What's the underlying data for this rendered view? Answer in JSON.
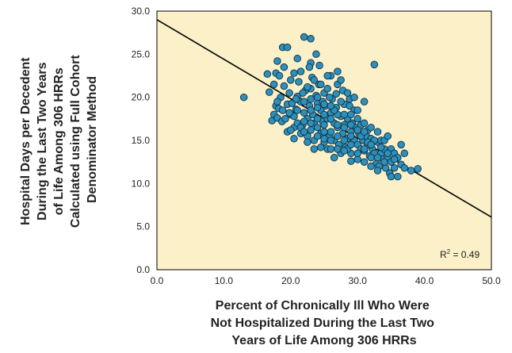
{
  "chart_data": {
    "type": "scatter",
    "title": "",
    "xlabel_lines": [
      "Percent of Chronically Ill Who Were",
      "Not Hospitalized During the Last Two",
      "Years of Life Among 306 HRRs"
    ],
    "ylabel_lines": [
      "Hospital Days per Decedent",
      "During the Last Two Years",
      "of Life Among 306 HRRs",
      "Calculated using Full Cohort",
      "Denominator Method"
    ],
    "xlim": [
      0,
      50
    ],
    "ylim": [
      0,
      30
    ],
    "x_ticks": [
      "0.0",
      "10.0",
      "20.0",
      "30.0",
      "40.0",
      "50.0"
    ],
    "y_ticks": [
      "0.0",
      "5.0",
      "10.0",
      "15.0",
      "20.0",
      "25.0",
      "30.0"
    ],
    "grid": false,
    "background_color": "#fbf0c8",
    "marker_color": "#2e8fb9",
    "marker_edge_color": "#0d2f45",
    "annotation": {
      "text": "R",
      "superscript": "2",
      "suffix": " = 0.49"
    },
    "trendline": {
      "x": [
        0,
        50
      ],
      "y": [
        29,
        6.1
      ],
      "color": "#000000"
    },
    "points": [
      [
        13.0,
        20.0
      ],
      [
        17.5,
        21.5
      ],
      [
        17.8,
        22.8
      ],
      [
        18.0,
        24.2
      ],
      [
        18.3,
        22.5
      ],
      [
        18.8,
        25.8
      ],
      [
        19.5,
        25.8
      ],
      [
        16.5,
        22.7
      ],
      [
        16.8,
        20.6
      ],
      [
        17.2,
        17.3
      ],
      [
        17.5,
        18.0
      ],
      [
        17.8,
        19.0
      ],
      [
        18.0,
        17.6
      ],
      [
        18.2,
        18.7
      ],
      [
        18.5,
        20.0
      ],
      [
        18.7,
        17.2
      ],
      [
        19.0,
        21.3
      ],
      [
        19.2,
        17.5
      ],
      [
        19.5,
        19.2
      ],
      [
        19.8,
        20.5
      ],
      [
        20.0,
        22.0
      ],
      [
        20.0,
        18.0
      ],
      [
        20.2,
        19.3
      ],
      [
        20.5,
        16.5
      ],
      [
        20.5,
        17.8
      ],
      [
        20.8,
        18.6
      ],
      [
        21.0,
        20.1
      ],
      [
        21.0,
        17.0
      ],
      [
        21.2,
        21.8
      ],
      [
        21.5,
        19.5
      ],
      [
        21.5,
        15.8
      ],
      [
        21.8,
        16.8
      ],
      [
        22.0,
        27.0
      ],
      [
        22.0,
        18.2
      ],
      [
        22.2,
        20.8
      ],
      [
        22.5,
        17.5
      ],
      [
        22.5,
        15.5
      ],
      [
        22.8,
        19.0
      ],
      [
        23.0,
        26.8
      ],
      [
        23.0,
        24.0
      ],
      [
        23.0,
        21.0
      ],
      [
        23.0,
        16.2
      ],
      [
        23.2,
        22.3
      ],
      [
        23.3,
        18.0
      ],
      [
        23.5,
        17.0
      ],
      [
        23.5,
        15.0
      ],
      [
        23.8,
        20.2
      ],
      [
        24.0,
        19.3
      ],
      [
        24.0,
        16.5
      ],
      [
        24.2,
        21.5
      ],
      [
        24.3,
        23.7
      ],
      [
        24.5,
        18.5
      ],
      [
        24.5,
        15.8
      ],
      [
        24.8,
        17.2
      ],
      [
        25.0,
        20.5
      ],
      [
        25.0,
        16.8
      ],
      [
        25.0,
        14.8
      ],
      [
        25.2,
        19.0
      ],
      [
        25.5,
        21.0
      ],
      [
        25.5,
        17.5
      ],
      [
        25.8,
        15.5
      ],
      [
        26.0,
        18.2
      ],
      [
        26.0,
        16.0
      ],
      [
        26.2,
        19.8
      ],
      [
        26.5,
        17.0
      ],
      [
        26.5,
        15.0
      ],
      [
        26.8,
        18.8
      ],
      [
        27.0,
        21.5
      ],
      [
        27.0,
        16.5
      ],
      [
        27.2,
        14.5
      ],
      [
        27.5,
        22.0
      ],
      [
        27.5,
        17.8
      ],
      [
        27.8,
        15.8
      ],
      [
        28.0,
        19.2
      ],
      [
        28.0,
        16.8
      ],
      [
        28.2,
        14.2
      ],
      [
        28.5,
        17.5
      ],
      [
        28.5,
        15.2
      ],
      [
        28.8,
        19.0
      ],
      [
        29.0,
        16.0
      ],
      [
        29.0,
        13.5
      ],
      [
        29.2,
        17.0
      ],
      [
        29.5,
        18.5
      ],
      [
        29.5,
        15.0
      ],
      [
        29.8,
        16.5
      ],
      [
        30.0,
        14.5
      ],
      [
        30.2,
        15.8
      ],
      [
        30.5,
        14.0
      ],
      [
        30.5,
        16.8
      ],
      [
        30.8,
        15.0
      ],
      [
        31.0,
        19.5
      ],
      [
        31.0,
        13.8
      ],
      [
        31.3,
        15.5
      ],
      [
        31.5,
        14.5
      ],
      [
        31.8,
        13.2
      ],
      [
        32.0,
        15.2
      ],
      [
        32.2,
        14.0
      ],
      [
        32.5,
        23.8
      ],
      [
        32.5,
        13.5
      ],
      [
        32.8,
        12.3
      ],
      [
        33.0,
        14.8
      ],
      [
        33.2,
        12.0
      ],
      [
        33.5,
        13.5
      ],
      [
        33.8,
        12.8
      ],
      [
        34.0,
        14.0
      ],
      [
        34.2,
        11.8
      ],
      [
        34.5,
        13.0
      ],
      [
        34.8,
        11.2
      ],
      [
        35.0,
        12.5
      ],
      [
        35.5,
        11.8
      ],
      [
        36.0,
        10.8
      ],
      [
        36.5,
        12.2
      ],
      [
        37.0,
        11.8
      ],
      [
        38.0,
        11.5
      ],
      [
        39.0,
        11.7
      ],
      [
        35.0,
        10.8
      ],
      [
        33.0,
        11.5
      ],
      [
        32.0,
        12.0
      ],
      [
        31.0,
        12.5
      ],
      [
        30.0,
        12.8
      ],
      [
        29.0,
        12.6
      ],
      [
        28.5,
        14.0
      ],
      [
        27.5,
        13.5
      ],
      [
        26.5,
        13.0
      ],
      [
        25.5,
        14.0
      ],
      [
        24.5,
        14.2
      ],
      [
        23.5,
        14.0
      ],
      [
        22.5,
        14.8
      ],
      [
        21.5,
        16.5
      ],
      [
        20.5,
        15.2
      ],
      [
        19.5,
        16.0
      ],
      [
        24.8,
        19.5
      ],
      [
        25.8,
        20.0
      ],
      [
        26.8,
        20.4
      ],
      [
        27.8,
        20.8
      ],
      [
        28.8,
        19.8
      ],
      [
        26.0,
        22.5
      ],
      [
        27.0,
        23.0
      ],
      [
        22.8,
        23.5
      ],
      [
        23.8,
        25.0
      ],
      [
        21.0,
        24.5
      ],
      [
        21.5,
        23.0
      ],
      [
        20.5,
        22.8
      ],
      [
        19.0,
        23.5
      ],
      [
        25.0,
        18.0
      ],
      [
        26.0,
        17.5
      ],
      [
        27.0,
        18.0
      ],
      [
        28.0,
        18.0
      ],
      [
        29.0,
        18.0
      ],
      [
        30.0,
        17.5
      ],
      [
        30.0,
        18.5
      ],
      [
        31.0,
        17.0
      ],
      [
        31.5,
        16.2
      ],
      [
        32.0,
        16.5
      ],
      [
        33.0,
        16.0
      ],
      [
        33.5,
        15.0
      ],
      [
        34.0,
        15.0
      ],
      [
        34.5,
        15.5
      ],
      [
        35.0,
        14.0
      ],
      [
        35.5,
        13.5
      ],
      [
        36.0,
        13.0
      ],
      [
        37.0,
        13.5
      ],
      [
        36.5,
        14.5
      ],
      [
        34.0,
        12.5
      ],
      [
        22.0,
        19.5
      ],
      [
        23.0,
        19.8
      ],
      [
        24.0,
        20.0
      ],
      [
        21.0,
        18.5
      ],
      [
        20.0,
        16.2
      ],
      [
        22.0,
        16.0
      ],
      [
        23.0,
        17.0
      ],
      [
        24.0,
        17.5
      ],
      [
        25.0,
        16.0
      ],
      [
        26.0,
        15.0
      ],
      [
        27.0,
        15.5
      ],
      [
        28.0,
        15.0
      ],
      [
        29.0,
        14.5
      ],
      [
        30.0,
        13.5
      ],
      [
        31.0,
        14.0
      ],
      [
        32.0,
        13.0
      ],
      [
        33.0,
        13.0
      ],
      [
        22.5,
        21.2
      ],
      [
        23.5,
        22.0
      ],
      [
        24.5,
        21.5
      ],
      [
        25.5,
        22.5
      ],
      [
        21.8,
        20.5
      ],
      [
        20.8,
        19.8
      ],
      [
        19.8,
        18.2
      ],
      [
        18.8,
        18.5
      ],
      [
        18.0,
        19.5
      ],
      [
        26.5,
        18.5
      ],
      [
        27.5,
        19.5
      ],
      [
        28.5,
        20.5
      ],
      [
        29.5,
        20.0
      ],
      [
        24.0,
        15.5
      ],
      [
        25.0,
        15.2
      ],
      [
        26.0,
        14.0
      ],
      [
        27.0,
        14.0
      ],
      [
        28.0,
        13.8
      ],
      [
        29.0,
        15.5
      ],
      [
        30.5,
        15.5
      ],
      [
        31.5,
        14.8
      ],
      [
        32.5,
        15.0
      ],
      [
        33.5,
        14.2
      ],
      [
        34.5,
        13.5
      ],
      [
        35.5,
        12.8
      ],
      [
        22.0,
        17.2
      ],
      [
        23.0,
        18.5
      ],
      [
        24.0,
        18.8
      ],
      [
        25.0,
        19.2
      ],
      [
        26.0,
        19.0
      ],
      [
        27.0,
        16.8
      ],
      [
        28.0,
        16.5
      ],
      [
        29.0,
        16.8
      ],
      [
        30.0,
        16.2
      ],
      [
        31.0,
        16.0
      ],
      [
        32.0,
        14.5
      ]
    ]
  }
}
